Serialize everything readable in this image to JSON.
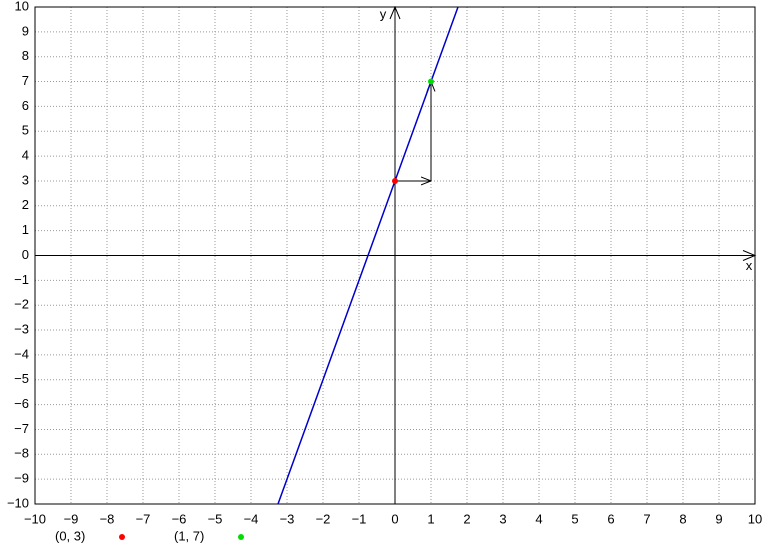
{
  "chart_data": {
    "type": "line",
    "x_label": "x",
    "y_label": "y",
    "xlim": [
      -10,
      10
    ],
    "ylim": [
      -10,
      10
    ],
    "xticks": [
      {
        "value": -10,
        "label": "−10"
      },
      {
        "value": -9,
        "label": "−9"
      },
      {
        "value": -8,
        "label": "−8"
      },
      {
        "value": -7,
        "label": "−7"
      },
      {
        "value": -6,
        "label": "−6"
      },
      {
        "value": -5,
        "label": "−5"
      },
      {
        "value": -4,
        "label": "−4"
      },
      {
        "value": -3,
        "label": "−3"
      },
      {
        "value": -2,
        "label": "−2"
      },
      {
        "value": -1,
        "label": "−1"
      },
      0,
      1,
      2,
      3,
      4,
      5,
      6,
      7,
      8,
      9,
      10
    ],
    "yticks": [
      {
        "value": -10,
        "label": "−10"
      },
      {
        "value": -9,
        "label": "−9"
      },
      {
        "value": -8,
        "label": "−8"
      },
      {
        "value": -7,
        "label": "−7"
      },
      {
        "value": -6,
        "label": "−6"
      },
      {
        "value": -5,
        "label": "−5"
      },
      {
        "value": -4,
        "label": "−4"
      },
      {
        "value": -3,
        "label": "−3"
      },
      {
        "value": -2,
        "label": "−2"
      },
      {
        "value": -1,
        "label": "−1"
      },
      0,
      1,
      2,
      3,
      4,
      5,
      6,
      7,
      8,
      9,
      10
    ],
    "grid": true,
    "series": [
      {
        "color": "#0000cc",
        "x": [
          -3.25,
          1.75
        ],
        "values": [
          -10,
          10
        ]
      },
      {
        "name": "(0, 3)",
        "type": "scatter",
        "color": "#ff0000",
        "x": [
          0
        ],
        "values": [
          3
        ]
      },
      {
        "name": "(1, 7)",
        "type": "scatter",
        "color": "#00dd00",
        "x": [
          1
        ],
        "values": [
          7
        ]
      }
    ],
    "arrows": [
      {
        "x": [
          0,
          1
        ],
        "y": [
          3,
          3
        ]
      },
      {
        "x": [
          1,
          1
        ],
        "y": [
          3,
          7
        ]
      }
    ],
    "arrow_color": "#000000"
  }
}
